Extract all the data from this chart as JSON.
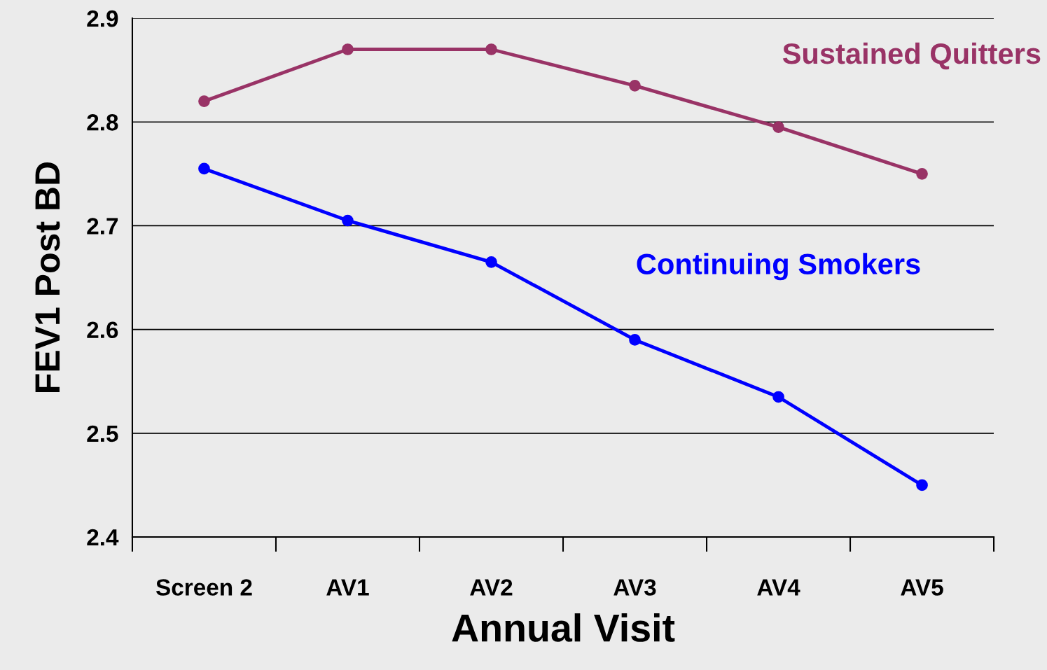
{
  "chart_data": {
    "type": "line",
    "xlabel": "Annual Visit",
    "ylabel": "FEV1 Post BD",
    "categories": [
      "Screen 2",
      "AV1",
      "AV2",
      "AV3",
      "AV4",
      "AV5"
    ],
    "series": [
      {
        "name": "Sustained Quitters",
        "color": "#993366",
        "values": [
          2.82,
          2.87,
          2.87,
          2.835,
          2.795,
          2.75
        ]
      },
      {
        "name": "Continuing Smokers",
        "color": "#0000ff",
        "values": [
          2.755,
          2.705,
          2.665,
          2.59,
          2.535,
          2.45
        ]
      }
    ],
    "ylim": [
      2.4,
      2.9
    ],
    "yticks": [
      2.4,
      2.5,
      2.6,
      2.7,
      2.8,
      2.9
    ],
    "grid": "y",
    "legend": false,
    "marker": "circle",
    "line_style": "solid"
  }
}
